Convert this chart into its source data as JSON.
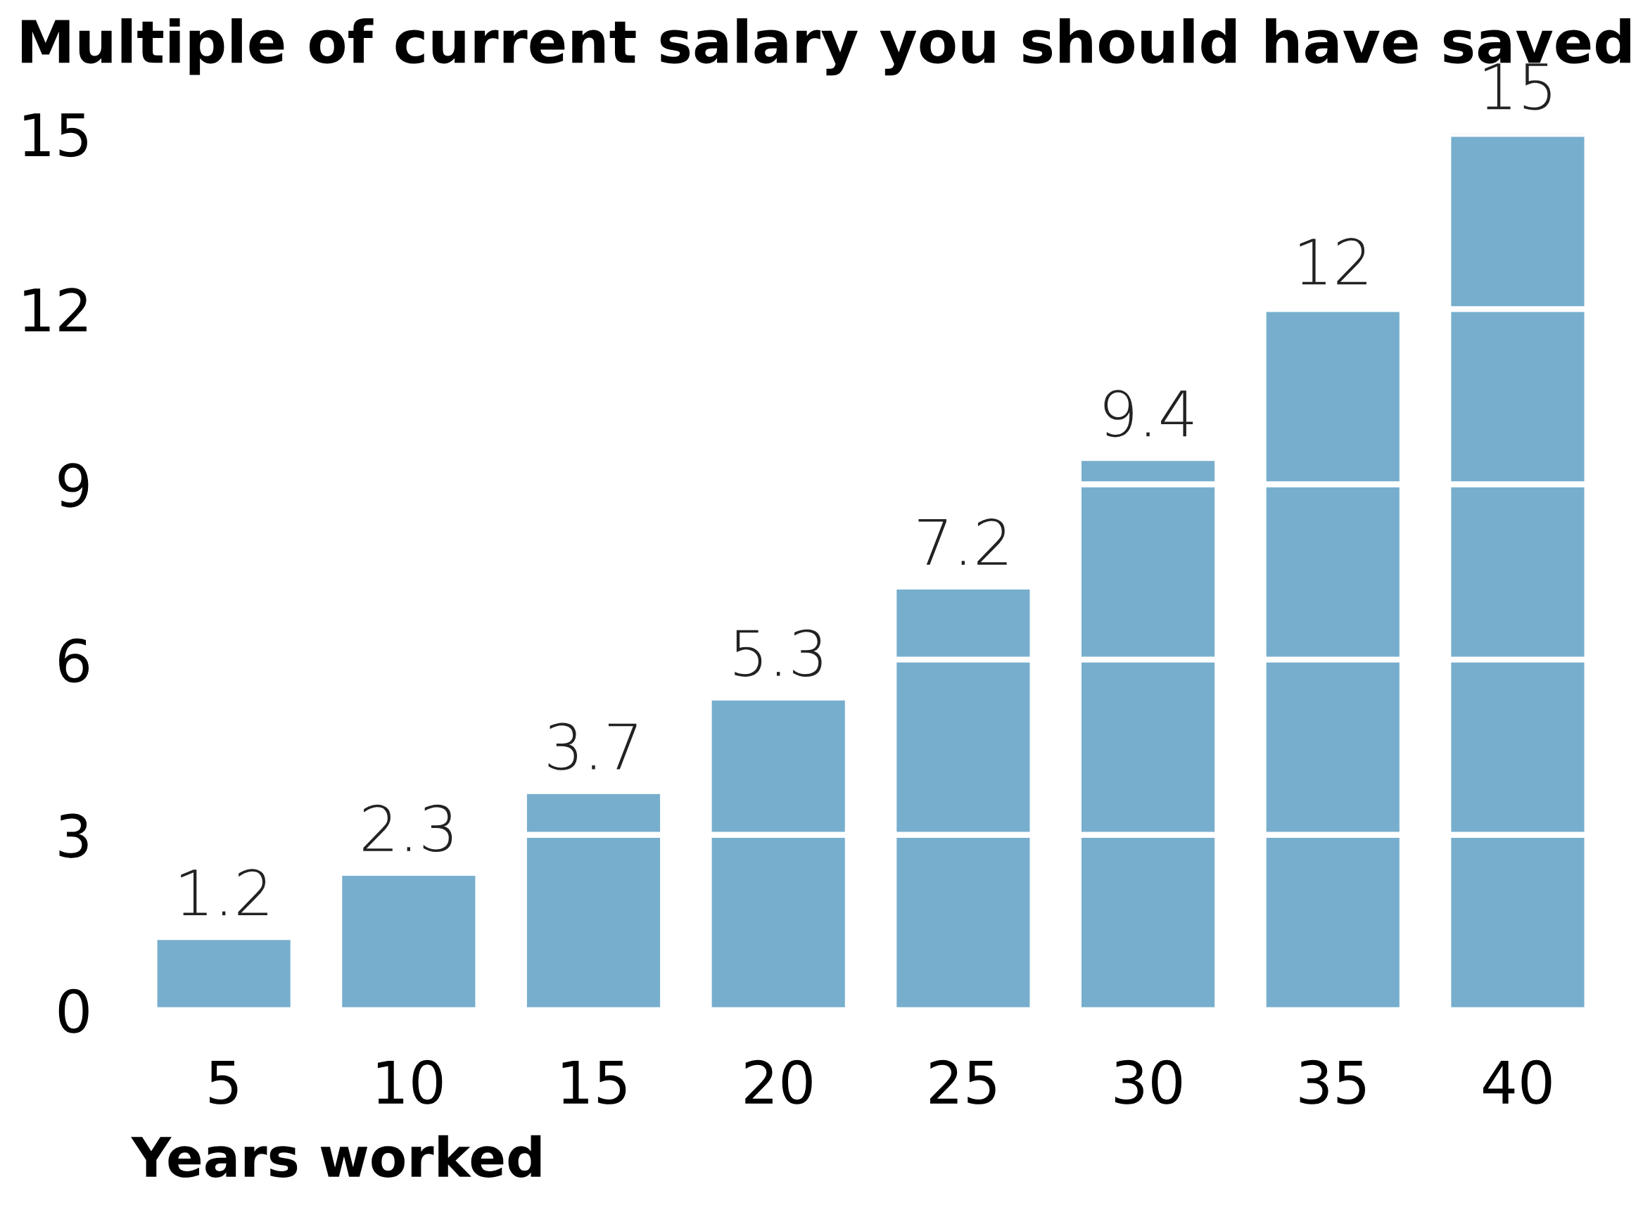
{
  "chart_data": {
    "type": "bar",
    "title": "Multiple of current salary you should have saved",
    "xlabel": "Years worked",
    "categories": [
      "5",
      "10",
      "15",
      "20",
      "25",
      "30",
      "35",
      "40"
    ],
    "values": [
      1.2,
      2.3,
      3.7,
      5.3,
      7.2,
      9.4,
      12,
      15
    ],
    "color": "#77aecd",
    "ylim": [
      0,
      15
    ],
    "yticks": [
      0,
      3,
      6,
      9,
      12,
      15
    ],
    "grid": "y",
    "data_labels": true
  }
}
